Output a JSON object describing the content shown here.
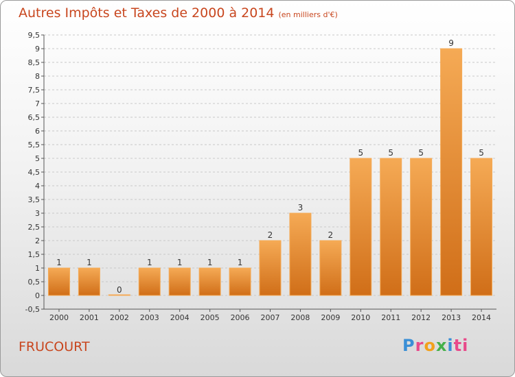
{
  "title": "Autres Impôts et Taxes de 2000 à 2014",
  "unit": "(en milliers d'€)",
  "location": "FRUCOURT",
  "logo": [
    "P",
    "r",
    "o",
    "x",
    "i",
    "ti"
  ],
  "colors": {
    "bar": "#e8882e",
    "bar_light": "#f5aa55",
    "bar_dark": "#d06e18",
    "grid": "#c8c8c8",
    "title": "#c8461e"
  },
  "chart_data": {
    "type": "bar",
    "categories": [
      "2000",
      "2001",
      "2002",
      "2003",
      "2004",
      "2005",
      "2006",
      "2007",
      "2008",
      "2009",
      "2010",
      "2011",
      "2012",
      "2013",
      "2014"
    ],
    "values": [
      1,
      1,
      0,
      1,
      1,
      1,
      1,
      2,
      3,
      2,
      5,
      5,
      5,
      9,
      5
    ],
    "data_labels": [
      "1",
      "1",
      "0",
      "1",
      "1",
      "1",
      "1",
      "2",
      "3",
      "2",
      "5",
      "5",
      "5",
      "9",
      "5"
    ],
    "yticks": [
      "-0,5",
      "0",
      "0,5",
      "1",
      "1,5",
      "2",
      "2,5",
      "3",
      "3,5",
      "4",
      "4,5",
      "5",
      "5,5",
      "6",
      "6,5",
      "7",
      "7,5",
      "8",
      "8,5",
      "9",
      "9,5"
    ],
    "ylim": [
      -0.5,
      9.5
    ],
    "grid": true
  }
}
